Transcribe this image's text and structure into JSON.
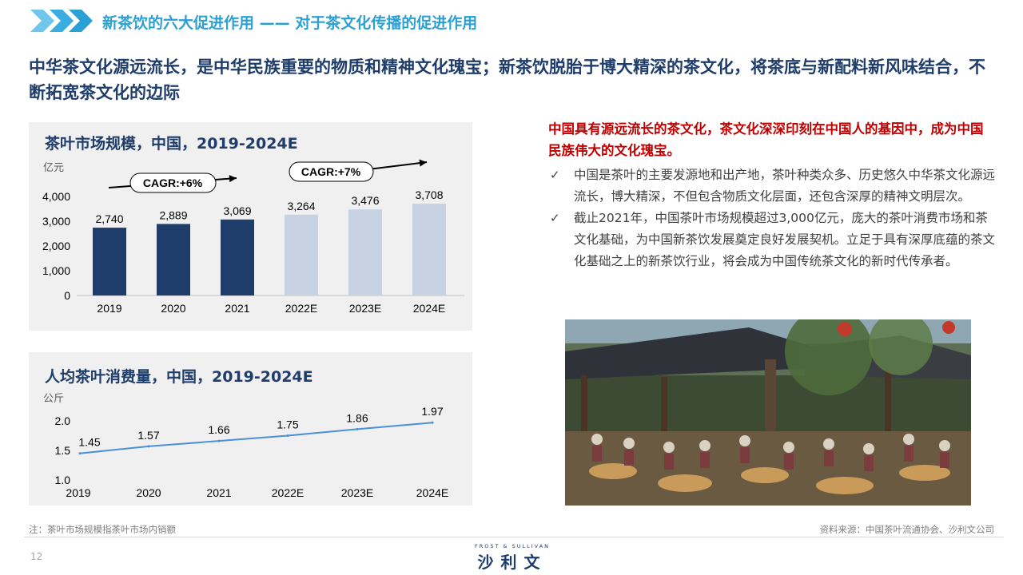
{
  "header": {
    "title": "新茶饮的六大促进作用 —— 对于茶文化传播的促进作用"
  },
  "headline": "中华茶文化源远流长，是中华民族重要的物质和精神文化瑰宝；新茶饮脱胎于博大精深的茶文化，将茶底与新配料新风味结合，不断拓宽茶文化的边际",
  "chart_data": [
    {
      "type": "bar",
      "title": "茶叶市场规模，中国，2019-2024E",
      "ylabel": "亿元",
      "categories": [
        "2019",
        "2020",
        "2021",
        "2022E",
        "2023E",
        "2024E"
      ],
      "values": [
        2740,
        2889,
        3069,
        3264,
        3476,
        3708
      ],
      "value_labels": [
        "2,740",
        "2,889",
        "3,069",
        "3,264",
        "3,476",
        "3,708"
      ],
      "ylim": [
        0,
        4000
      ],
      "yticks": [
        "0",
        "1,000",
        "2,000",
        "3,000",
        "4,000"
      ],
      "actual_color": "#1f3d6b",
      "estimate_color": "#c7d2e3",
      "annotations": [
        "CAGR:+6%",
        "CAGR:+7%"
      ]
    },
    {
      "type": "line",
      "title": "人均茶叶消费量，中国，2019-2024E",
      "ylabel": "公斤",
      "categories": [
        "2019",
        "2020",
        "2021",
        "2022E",
        "2023E",
        "2024E"
      ],
      "values": [
        1.45,
        1.57,
        1.66,
        1.75,
        1.86,
        1.97
      ],
      "value_labels": [
        "1.45",
        "1.57",
        "1.66",
        "1.75",
        "1.86",
        "1.97"
      ],
      "ylim": [
        1.0,
        2.0
      ],
      "yticks": [
        "1.0",
        "1.5",
        "2.0"
      ],
      "line_color": "#4a90d6"
    }
  ],
  "right": {
    "heading": "中国具有源远流长的茶文化，茶文化深深印刻在中国人的基因中，成为中国民族伟大的文化瑰宝。",
    "bullets": [
      "中国是茶叶的主要发源地和出产地，茶叶种类众多、历史悠久中华茶文化源远流长，博大精深，不但包含物质文化层面，还包含深厚的精神文明层次。",
      "截止2021年，中国茶叶市场规模超过3,000亿元，庞大的茶叶消费市场和茶文化基础，为中国新茶饮发展奠定良好发展契机。立足于具有深厚底蕴的茶文化基础之上的新茶饮行业，将会成为中国传统茶文化的新时代传承者。"
    ],
    "check_glyph": "✓"
  },
  "footer": {
    "note": "注：茶叶市场规模指茶叶市场内销额",
    "source": "资料来源：中国茶叶流通协会、沙利文公司",
    "page": "12",
    "logo_en": "FROST & SULLIVAN",
    "logo_cn": "沙利文"
  },
  "colors": {
    "accent": "#2aa0d4",
    "navy": "#1f3d6b",
    "highlight": "#c00000"
  }
}
